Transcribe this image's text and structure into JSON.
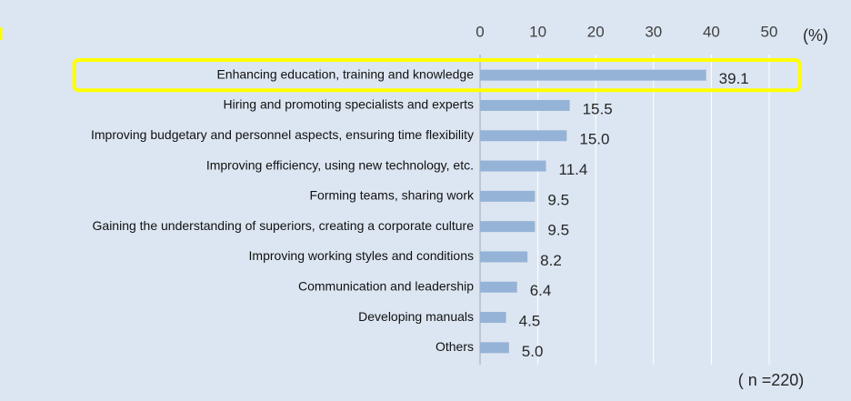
{
  "chart_data": {
    "type": "bar",
    "orientation": "horizontal",
    "categories": [
      "Enhancing education, training and knowledge",
      "Hiring and promoting specialists and experts",
      "Improving budgetary and personnel aspects, ensuring time flexibility",
      "Improving efficiency, using new technology, etc.",
      "Forming teams, sharing work",
      "Gaining the understanding of superiors, creating a corporate culture",
      "Improving working styles and conditions",
      "Communication and leadership",
      "Developing manuals",
      "Others"
    ],
    "values": [
      39.1,
      15.5,
      15.0,
      11.4,
      9.5,
      9.5,
      8.2,
      6.4,
      4.5,
      5.0
    ],
    "value_labels": [
      "39.1",
      "15.5",
      "15.0",
      "11.4",
      "9.5",
      "9.5",
      "8.2",
      "6.4",
      "4.5",
      "5.0"
    ],
    "color": "#95b3d7",
    "xlim": [
      0,
      50
    ],
    "xticks": [
      0,
      10,
      20,
      30,
      40,
      50
    ],
    "grid": true,
    "unit_label": "(%)",
    "note": "( n =220)",
    "highlight_color": "#ffff00"
  }
}
